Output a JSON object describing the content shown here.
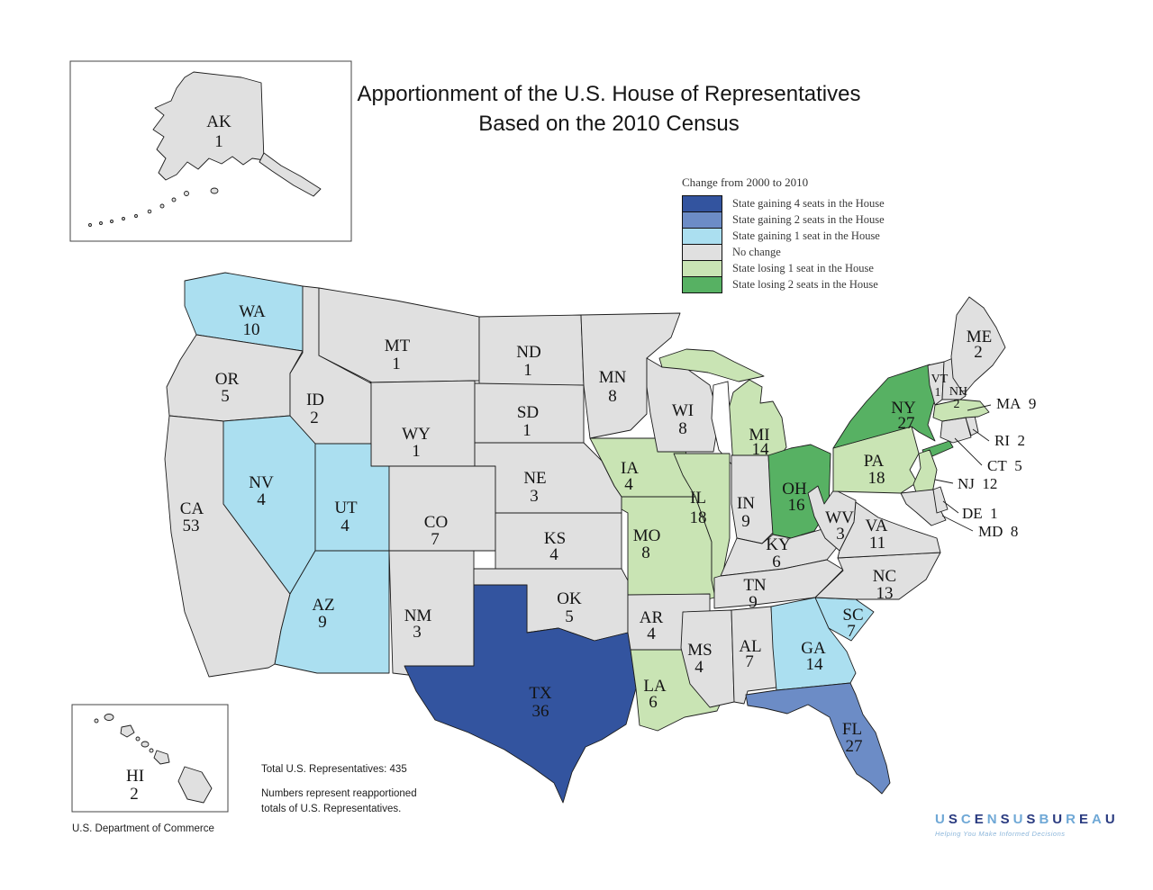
{
  "title": {
    "line1": "Apportionment of the U.S. House of Representatives",
    "line2": "Based on the 2010 Census"
  },
  "legend": {
    "title": "Change from 2000 to 2010",
    "items": [
      {
        "key": "gain4",
        "label": "State gaining 4 seats in the House",
        "color": "#33549f"
      },
      {
        "key": "gain2",
        "label": "State gaining 2 seats in the House",
        "color": "#6c8cc6"
      },
      {
        "key": "gain1",
        "label": "State gaining 1 seat in the House",
        "color": "#abdff0"
      },
      {
        "key": "nochange",
        "label": "No change",
        "color": "#e0e0e0"
      },
      {
        "key": "lose1",
        "label": "State losing 1 seat in the House",
        "color": "#c9e4b4"
      },
      {
        "key": "lose2",
        "label": "State losing 2 seats in the House",
        "color": "#57b163"
      }
    ]
  },
  "map": {
    "states": [
      {
        "abbr": "AK",
        "seats": 1,
        "category": "nochange"
      },
      {
        "abbr": "HI",
        "seats": 2,
        "category": "nochange"
      },
      {
        "abbr": "WA",
        "seats": 10,
        "category": "gain1"
      },
      {
        "abbr": "OR",
        "seats": 5,
        "category": "nochange"
      },
      {
        "abbr": "CA",
        "seats": 53,
        "category": "nochange"
      },
      {
        "abbr": "NV",
        "seats": 4,
        "category": "gain1"
      },
      {
        "abbr": "ID",
        "seats": 2,
        "category": "nochange"
      },
      {
        "abbr": "MT",
        "seats": 1,
        "category": "nochange"
      },
      {
        "abbr": "WY",
        "seats": 1,
        "category": "nochange"
      },
      {
        "abbr": "UT",
        "seats": 4,
        "category": "gain1"
      },
      {
        "abbr": "AZ",
        "seats": 9,
        "category": "gain1"
      },
      {
        "abbr": "NM",
        "seats": 3,
        "category": "nochange"
      },
      {
        "abbr": "CO",
        "seats": 7,
        "category": "nochange"
      },
      {
        "abbr": "ND",
        "seats": 1,
        "category": "nochange"
      },
      {
        "abbr": "SD",
        "seats": 1,
        "category": "nochange"
      },
      {
        "abbr": "NE",
        "seats": 3,
        "category": "nochange"
      },
      {
        "abbr": "KS",
        "seats": 4,
        "category": "nochange"
      },
      {
        "abbr": "OK",
        "seats": 5,
        "category": "nochange"
      },
      {
        "abbr": "TX",
        "seats": 36,
        "category": "gain4"
      },
      {
        "abbr": "MN",
        "seats": 8,
        "category": "nochange"
      },
      {
        "abbr": "IA",
        "seats": 4,
        "category": "lose1"
      },
      {
        "abbr": "MO",
        "seats": 8,
        "category": "lose1"
      },
      {
        "abbr": "AR",
        "seats": 4,
        "category": "nochange"
      },
      {
        "abbr": "LA",
        "seats": 6,
        "category": "lose1"
      },
      {
        "abbr": "WI",
        "seats": 8,
        "category": "nochange"
      },
      {
        "abbr": "IL",
        "seats": 18,
        "category": "lose1"
      },
      {
        "abbr": "IN",
        "seats": 9,
        "category": "nochange"
      },
      {
        "abbr": "MI",
        "seats": 14,
        "category": "lose1"
      },
      {
        "abbr": "OH",
        "seats": 16,
        "category": "lose2"
      },
      {
        "abbr": "KY",
        "seats": 6,
        "category": "nochange"
      },
      {
        "abbr": "TN",
        "seats": 9,
        "category": "nochange"
      },
      {
        "abbr": "MS",
        "seats": 4,
        "category": "nochange"
      },
      {
        "abbr": "AL",
        "seats": 7,
        "category": "nochange"
      },
      {
        "abbr": "GA",
        "seats": 14,
        "category": "gain1"
      },
      {
        "abbr": "SC",
        "seats": 7,
        "category": "gain1"
      },
      {
        "abbr": "FL",
        "seats": 27,
        "category": "gain2"
      },
      {
        "abbr": "NC",
        "seats": 13,
        "category": "nochange"
      },
      {
        "abbr": "VA",
        "seats": 11,
        "category": "nochange"
      },
      {
        "abbr": "WV",
        "seats": 3,
        "category": "nochange"
      },
      {
        "abbr": "PA",
        "seats": 18,
        "category": "lose1"
      },
      {
        "abbr": "NY",
        "seats": 27,
        "category": "lose2"
      },
      {
        "abbr": "ME",
        "seats": 2,
        "category": "nochange"
      },
      {
        "abbr": "VT",
        "seats": 1,
        "category": "nochange"
      },
      {
        "abbr": "NH",
        "seats": 2,
        "category": "nochange"
      },
      {
        "abbr": "MA",
        "seats": 9,
        "category": "lose1"
      },
      {
        "abbr": "RI",
        "seats": 2,
        "category": "nochange"
      },
      {
        "abbr": "CT",
        "seats": 5,
        "category": "nochange"
      },
      {
        "abbr": "NJ",
        "seats": 12,
        "category": "lose1"
      },
      {
        "abbr": "DE",
        "seats": 1,
        "category": "nochange"
      },
      {
        "abbr": "MD",
        "seats": 8,
        "category": "nochange"
      }
    ]
  },
  "notes": {
    "total": "Total U.S. Representatives:  435",
    "note_line1": "Numbers represent reapportioned",
    "note_line2": "totals of U.S. Representatives."
  },
  "footer": {
    "department": "U.S. Department of Commerce"
  },
  "logo": {
    "name": "USCENSUSBUREAU",
    "tagline": "Helping You Make Informed Decisions",
    "letter_colors": [
      "#6fa8d6",
      "#2a3b80"
    ]
  }
}
